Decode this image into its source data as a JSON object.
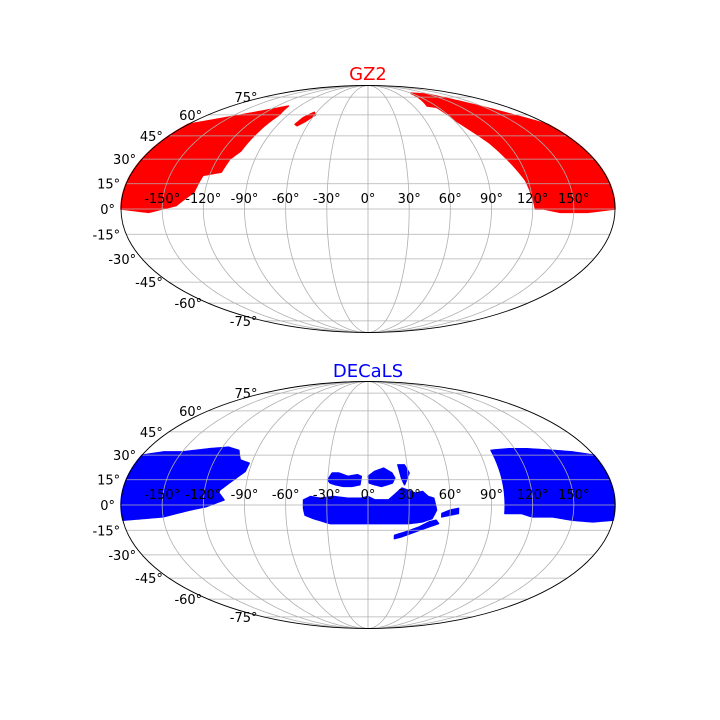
{
  "chart_data": [
    {
      "type": "scatter",
      "projection": "mollweide",
      "title": "GZ2",
      "color": "#ff0000",
      "xlabel": "",
      "ylabel": "",
      "grid": true,
      "x_ticks": [
        "-150°",
        "-120°",
        "-90°",
        "-60°",
        "-30°",
        "0°",
        "30°",
        "60°",
        "90°",
        "120°",
        "150°"
      ],
      "y_ticks": [
        "75°",
        "60°",
        "45°",
        "30°",
        "15°",
        "0°",
        "-15°",
        "-30°",
        "-45°",
        "-60°",
        "-75°"
      ],
      "xlim": [
        -180,
        180
      ],
      "ylim": [
        -90,
        90
      ],
      "regions": [
        {
          "polygon": [
            [
              -180,
              0
            ],
            [
              -180,
              53
            ],
            [
              -105,
              67
            ],
            [
              -100,
              60
            ],
            [
              -102,
              52
            ],
            [
              -105,
              35
            ],
            [
              -110,
              30
            ],
            [
              -112,
              22
            ],
            [
              -125,
              20
            ],
            [
              -128,
              10
            ],
            [
              -140,
              2
            ],
            [
              -160,
              -2
            ]
          ]
        },
        {
          "polygon": [
            [
              -70,
              58
            ],
            [
              -63,
              62
            ],
            [
              -59,
              60
            ],
            [
              -65,
              55
            ],
            [
              -70,
              52
            ],
            [
              -73,
              53
            ]
          ]
        },
        {
          "polygon": [
            [
              78,
              67
            ],
            [
              88,
              66
            ],
            [
              92,
              55
            ],
            [
              98,
              48
            ],
            [
              105,
              40
            ],
            [
              112,
              28
            ],
            [
              118,
              17
            ],
            [
              122,
              0
            ],
            [
              128,
              0
            ],
            [
              140,
              -2
            ],
            [
              160,
              -2
            ],
            [
              180,
              0
            ],
            [
              180,
              53
            ],
            [
              150,
              66
            ],
            [
              118,
              78
            ],
            [
              90,
              79
            ]
          ]
        }
      ]
    },
    {
      "type": "scatter",
      "projection": "mollweide",
      "title": "DECaLS",
      "color": "#0000ff",
      "xlabel": "",
      "ylabel": "",
      "grid": true,
      "x_ticks": [
        "-150°",
        "-120°",
        "-90°",
        "-60°",
        "-30°",
        "0°",
        "30°",
        "60°",
        "90°",
        "120°",
        "150°"
      ],
      "y_ticks": [
        "75°",
        "60°",
        "45°",
        "30°",
        "15°",
        "0°",
        "-15°",
        "-30°",
        "-45°",
        "-60°",
        "-75°"
      ],
      "xlim": [
        -180,
        180
      ],
      "ylim": [
        -90,
        90
      ],
      "regions": [
        {
          "polygon": [
            [
              -180,
              -9
            ],
            [
              -180,
              30
            ],
            [
              -165,
              32
            ],
            [
              -150,
              32
            ],
            [
              -130,
              34
            ],
            [
              -115,
              35
            ],
            [
              -105,
              33
            ],
            [
              -100,
              27
            ],
            [
              -92,
              25
            ],
            [
              -93,
              20
            ],
            [
              -100,
              15
            ],
            [
              -110,
              8
            ],
            [
              -105,
              3
            ],
            [
              -118,
              -1
            ],
            [
              -130,
              -3
            ],
            [
              -150,
              -7
            ],
            [
              -165,
              -8
            ]
          ]
        },
        {
          "polygon": [
            [
              -47,
              -2
            ],
            [
              -47,
              3
            ],
            [
              -42,
              5
            ],
            [
              -35,
              4
            ],
            [
              -25,
              5
            ],
            [
              -15,
              4
            ],
            [
              -5,
              4
            ],
            [
              0,
              5
            ],
            [
              5,
              3
            ],
            [
              15,
              3
            ],
            [
              25,
              10
            ],
            [
              35,
              7
            ],
            [
              40,
              8
            ],
            [
              44,
              5
            ],
            [
              48,
              4
            ],
            [
              50,
              -3
            ],
            [
              47,
              -8
            ],
            [
              40,
              -10
            ],
            [
              30,
              -11
            ],
            [
              20,
              -11
            ],
            [
              0,
              -11
            ],
            [
              -15,
              -11
            ],
            [
              -28,
              -11
            ],
            [
              -40,
              -8
            ],
            [
              -46,
              -6
            ]
          ]
        },
        {
          "polygon": [
            [
              -30,
              15
            ],
            [
              -27,
              19
            ],
            [
              -22,
              19
            ],
            [
              -15,
              17
            ],
            [
              -8,
              18
            ],
            [
              -5,
              17
            ],
            [
              -6,
              12
            ],
            [
              -12,
              11
            ],
            [
              -18,
              11
            ],
            [
              -24,
              12
            ],
            [
              -28,
              13
            ]
          ]
        },
        {
          "polygon": [
            [
              0,
              17
            ],
            [
              5,
              20
            ],
            [
              12,
              22
            ],
            [
              18,
              19
            ],
            [
              20,
              16
            ],
            [
              18,
              13
            ],
            [
              10,
              11
            ],
            [
              5,
              12
            ],
            [
              1,
              13
            ]
          ]
        },
        {
          "polygon": [
            [
              23,
              24
            ],
            [
              28,
              24
            ],
            [
              31,
              19
            ],
            [
              27,
              12
            ],
            [
              25,
              16
            ],
            [
              24,
              20
            ]
          ]
        },
        {
          "polygon": [
            [
              20,
              -18
            ],
            [
              28,
              -16
            ],
            [
              38,
              -13
            ],
            [
              45,
              -10
            ],
            [
              50,
              -9
            ],
            [
              52,
              -11
            ],
            [
              45,
              -13
            ],
            [
              35,
              -16
            ],
            [
              25,
              -19
            ],
            [
              20,
              -20
            ]
          ]
        },
        {
          "polygon": [
            [
              54,
              -5
            ],
            [
              60,
              -3
            ],
            [
              66,
              -2
            ],
            [
              66,
              -5
            ],
            [
              60,
              -6
            ],
            [
              54,
              -7
            ]
          ]
        },
        {
          "polygon": [
            [
              100,
              -5
            ],
            [
              100,
              33
            ],
            [
              115,
              34
            ],
            [
              130,
              34
            ],
            [
              150,
              33
            ],
            [
              165,
              32
            ],
            [
              180,
              30
            ],
            [
              180,
              -9
            ],
            [
              165,
              -10
            ],
            [
              150,
              -9
            ],
            [
              135,
              -7
            ],
            [
              120,
              -7
            ],
            [
              112,
              -5
            ]
          ]
        }
      ]
    }
  ]
}
